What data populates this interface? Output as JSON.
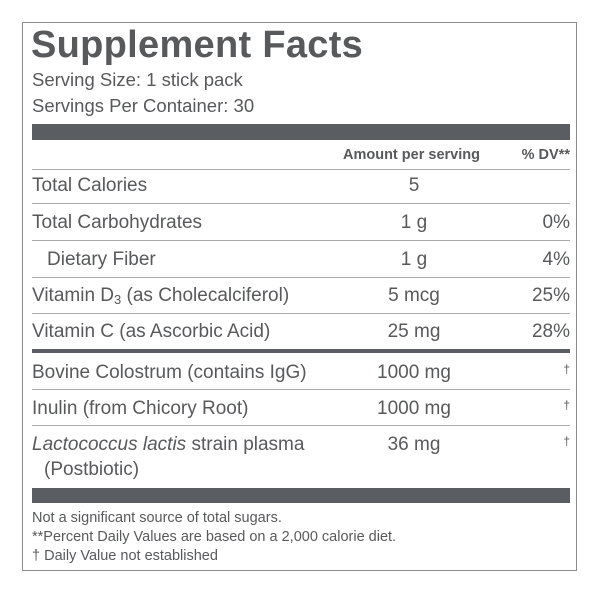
{
  "title": "Supplement Facts",
  "serving_size": "Serving Size: 1 stick pack",
  "servings_per_container": "Servings Per Container: 30",
  "header": {
    "amount": "Amount per serving",
    "dv": "% DV**"
  },
  "rows": [
    {
      "name": "Total Calories",
      "amount": "5",
      "dv": ""
    },
    {
      "name": "Total Carbohydrates",
      "amount": "1 g",
      "dv": "0%"
    },
    {
      "name": "Dietary Fiber",
      "amount": "1 g",
      "dv": "4%"
    },
    {
      "name_pre": "Vitamin D",
      "name_sub": "3",
      "name_post": " (as Cholecalciferol)",
      "amount": "5 mcg",
      "dv": "25%"
    },
    {
      "name": "Vitamin C (as Ascorbic Acid)",
      "amount": "25 mg",
      "dv": "28%"
    },
    {
      "name": "Bovine Colostrum (contains IgG)",
      "amount": "1000 mg",
      "dv": "†"
    },
    {
      "name": "Inulin (from Chicory Root)",
      "amount": "1000 mg",
      "dv": "†"
    },
    {
      "name_italic": "Lactococcus lactis",
      "name_post": " strain plasma",
      "name_line2": "(Postbiotic)",
      "amount": "36 mg",
      "dv": "†"
    }
  ],
  "footnotes": [
    "Not a significant source of total sugars.",
    "**Percent Daily Values are based on a 2,000 calorie diet.",
    "† Daily Value not established"
  ],
  "colors": {
    "text": "#58595b",
    "bar": "#5a5d61",
    "rule": "#a7a9ab"
  }
}
